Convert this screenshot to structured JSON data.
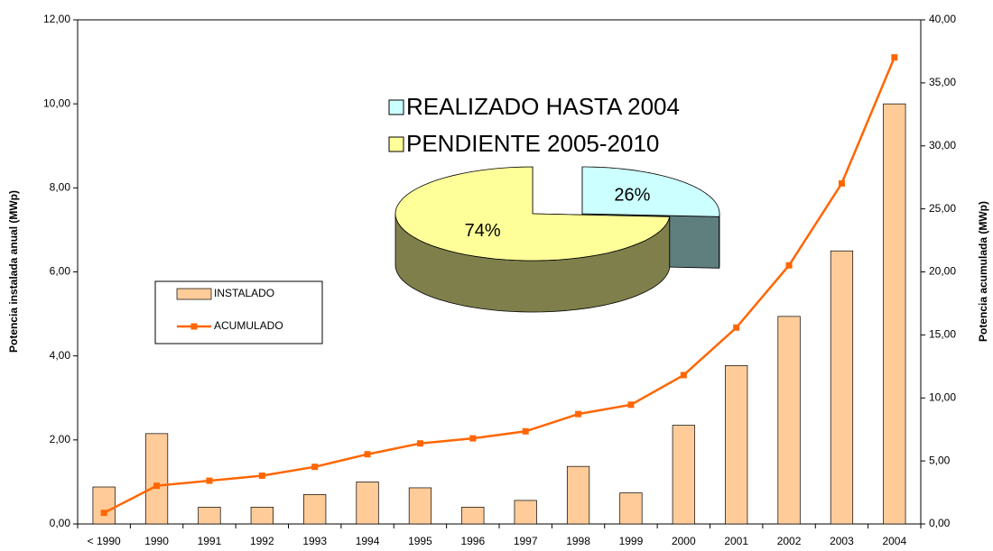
{
  "chart_data": [
    {
      "type": "bar",
      "categories": [
        "< 1990",
        "1990",
        "1991",
        "1992",
        "1993",
        "1994",
        "1995",
        "1996",
        "1997",
        "1998",
        "1999",
        "2000",
        "2001",
        "2002",
        "2003",
        "2004"
      ],
      "series": [
        {
          "name": "INSTALADO",
          "type": "bar",
          "color": "#ffcc99",
          "values": [
            0.88,
            2.15,
            0.4,
            0.4,
            0.7,
            1.0,
            0.86,
            0.4,
            0.56,
            1.37,
            0.74,
            2.35,
            3.77,
            4.94,
            6.5,
            10.0
          ]
        },
        {
          "name": "ACUMULADO",
          "type": "line",
          "axis": "y2",
          "color": "#ff6600",
          "values": [
            0.88,
            3.03,
            3.43,
            3.83,
            4.53,
            5.53,
            6.39,
            6.79,
            7.35,
            8.72,
            9.46,
            11.81,
            15.58,
            20.52,
            27.02,
            37.02
          ]
        }
      ],
      "ylabel": "Potencia instalada anual (MWp)",
      "y2label": "Potencia acumulada (MWp)",
      "ylim": [
        0,
        12
      ],
      "yticks": [
        {
          "value": 0,
          "label": "0,00"
        },
        {
          "value": 2,
          "label": "2,00"
        },
        {
          "value": 4,
          "label": "4,00"
        },
        {
          "value": 6,
          "label": "6,00"
        },
        {
          "value": 8,
          "label": "8,00"
        },
        {
          "value": 10,
          "label": "10,00"
        },
        {
          "value": 12,
          "label": "12,00"
        }
      ],
      "y2lim": [
        0,
        40
      ],
      "y2ticks": [
        {
          "value": 0,
          "label": "0,00"
        },
        {
          "value": 5,
          "label": "5,00"
        },
        {
          "value": 10,
          "label": "10,00"
        },
        {
          "value": 15,
          "label": "15,00"
        },
        {
          "value": 20,
          "label": "20,00"
        },
        {
          "value": 25,
          "label": "25,00"
        },
        {
          "value": 30,
          "label": "30,00"
        },
        {
          "value": 35,
          "label": "35,00"
        },
        {
          "value": 40,
          "label": "40,00"
        }
      ],
      "legend": "left"
    },
    {
      "type": "pie",
      "categories": [
        "REALIZADO HASTA 2004",
        "PENDIENTE 2005-2010"
      ],
      "values": [
        26,
        74
      ],
      "value_labels": [
        "26%",
        "74%"
      ],
      "colors": [
        "#ccffff",
        "#ffff99"
      ],
      "side_colors": [
        "#5f7f7f",
        "#7f7f4c"
      ]
    }
  ]
}
